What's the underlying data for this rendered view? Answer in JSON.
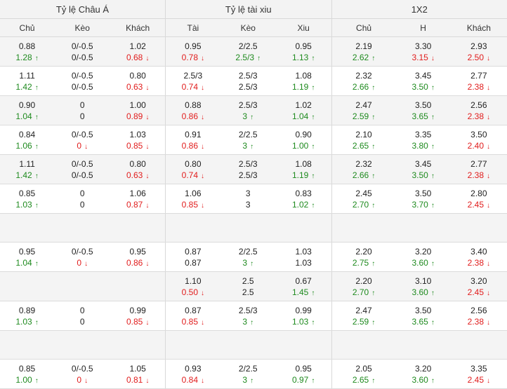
{
  "header": {
    "groups": [
      {
        "label": "Tỷ lệ Châu Á",
        "span": 3
      },
      {
        "label": "Tỷ lệ tài xiu",
        "span": 3
      },
      {
        "label": "1X2",
        "span": 3
      }
    ],
    "columns": [
      "Chủ",
      "Kèo",
      "Khách",
      "Tài",
      "Kèo",
      "Xiu",
      "Chủ",
      "H",
      "Khách"
    ]
  },
  "arrows": {
    "up": "↑",
    "down": "↓"
  },
  "colors": {
    "up": "#1e8a1e",
    "down": "#e11c1c",
    "header_bg": "#f3f3f3",
    "stripe_bg": "#f4f4f4"
  },
  "rows": [
    {
      "top": [
        "0.88",
        "0/-0.5",
        "1.02",
        "0.95",
        "2/2.5",
        "0.95",
        "2.19",
        "3.30",
        "2.93"
      ],
      "bot": [
        [
          "1.28",
          "up"
        ],
        [
          "0/-0.5",
          ""
        ],
        [
          "0.68",
          "down"
        ],
        [
          "0.78",
          "down"
        ],
        [
          "2.5/3",
          "up"
        ],
        [
          "1.13",
          "up"
        ],
        [
          "2.62",
          "up"
        ],
        [
          "3.15",
          "down"
        ],
        [
          "2.50",
          "down"
        ]
      ]
    },
    {
      "top": [
        "1.11",
        "0/-0.5",
        "0.80",
        "2.5/3",
        "2.5/3",
        "1.08",
        "2.32",
        "3.45",
        "2.77"
      ],
      "bot": [
        [
          "1.42",
          "up"
        ],
        [
          "0/-0.5",
          ""
        ],
        [
          "0.63",
          "down"
        ],
        [
          "0.74",
          "down"
        ],
        [
          "2.5/3",
          ""
        ],
        [
          "1.19",
          "up"
        ],
        [
          "2.66",
          "up"
        ],
        [
          "3.50",
          "up"
        ],
        [
          "2.38",
          "down"
        ]
      ]
    },
    {
      "top": [
        "0.90",
        "0",
        "1.00",
        "0.88",
        "2.5/3",
        "1.02",
        "2.47",
        "3.50",
        "2.56"
      ],
      "bot": [
        [
          "1.04",
          "up"
        ],
        [
          "0",
          ""
        ],
        [
          "0.89",
          "down"
        ],
        [
          "0.86",
          "down"
        ],
        [
          "3",
          "up"
        ],
        [
          "1.04",
          "up"
        ],
        [
          "2.59",
          "up"
        ],
        [
          "3.65",
          "up"
        ],
        [
          "2.38",
          "down"
        ]
      ]
    },
    {
      "top": [
        "0.84",
        "0/-0.5",
        "1.03",
        "0.91",
        "2/2.5",
        "0.90",
        "2.10",
        "3.35",
        "3.50"
      ],
      "bot": [
        [
          "1.06",
          "up"
        ],
        [
          "0",
          "down"
        ],
        [
          "0.85",
          "down"
        ],
        [
          "0.86",
          "down"
        ],
        [
          "3",
          "up"
        ],
        [
          "1.00",
          "up"
        ],
        [
          "2.65",
          "up"
        ],
        [
          "3.80",
          "up"
        ],
        [
          "2.40",
          "down"
        ]
      ]
    },
    {
      "top": [
        "1.11",
        "0/-0.5",
        "0.80",
        "0.80",
        "2.5/3",
        "1.08",
        "2.32",
        "3.45",
        "2.77"
      ],
      "bot": [
        [
          "1.42",
          "up"
        ],
        [
          "0/-0.5",
          ""
        ],
        [
          "0.63",
          "down"
        ],
        [
          "0.74",
          "down"
        ],
        [
          "2.5/3",
          ""
        ],
        [
          "1.19",
          "up"
        ],
        [
          "2.66",
          "up"
        ],
        [
          "3.50",
          "up"
        ],
        [
          "2.38",
          "down"
        ]
      ]
    },
    {
      "top": [
        "0.85",
        "0",
        "1.06",
        "1.06",
        "3",
        "0.83",
        "2.45",
        "3.50",
        "2.80"
      ],
      "bot": [
        [
          "1.03",
          "up"
        ],
        [
          "0",
          ""
        ],
        [
          "0.87",
          "down"
        ],
        [
          "0.85",
          "down"
        ],
        [
          "3",
          ""
        ],
        [
          "1.02",
          "up"
        ],
        [
          "2.70",
          "up"
        ],
        [
          "3.70",
          "up"
        ],
        [
          "2.45",
          "down"
        ]
      ]
    },
    {
      "blank": true
    },
    {
      "top": [
        "0.95",
        "0/-0.5",
        "0.95",
        "0.87",
        "2/2.5",
        "1.03",
        "2.20",
        "3.20",
        "3.40"
      ],
      "bot": [
        [
          "1.04",
          "up"
        ],
        [
          "0",
          "down"
        ],
        [
          "0.86",
          "down"
        ],
        [
          "0.87",
          ""
        ],
        [
          "3",
          "up"
        ],
        [
          "1.03",
          ""
        ],
        [
          "2.75",
          "up"
        ],
        [
          "3.60",
          "up"
        ],
        [
          "2.38",
          "down"
        ]
      ]
    },
    {
      "top": [
        "",
        "",
        "",
        "1.10",
        "2.5",
        "0.67",
        "2.20",
        "3.10",
        "3.20"
      ],
      "bot": [
        [
          "",
          ""
        ],
        [
          "",
          ""
        ],
        [
          "",
          ""
        ],
        [
          "0.50",
          "down"
        ],
        [
          "2.5",
          ""
        ],
        [
          "1.45",
          "up"
        ],
        [
          "2.70",
          "up"
        ],
        [
          "3.60",
          "up"
        ],
        [
          "2.45",
          "down"
        ]
      ]
    },
    {
      "top": [
        "0.89",
        "0",
        "0.99",
        "0.87",
        "2.5/3",
        "0.99",
        "2.47",
        "3.50",
        "2.56"
      ],
      "bot": [
        [
          "1.03",
          "up"
        ],
        [
          "0",
          ""
        ],
        [
          "0.85",
          "down"
        ],
        [
          "0.85",
          "down"
        ],
        [
          "3",
          "up"
        ],
        [
          "1.03",
          "up"
        ],
        [
          "2.59",
          "up"
        ],
        [
          "3.65",
          "up"
        ],
        [
          "2.38",
          "down"
        ]
      ]
    },
    {
      "blank": true
    },
    {
      "top": [
        "0.85",
        "0/-0.5",
        "1.05",
        "0.93",
        "2/2.5",
        "0.95",
        "2.05",
        "3.20",
        "3.35"
      ],
      "bot": [
        [
          "1.00",
          "up"
        ],
        [
          "0",
          "down"
        ],
        [
          "0.81",
          "down"
        ],
        [
          "0.84",
          "down"
        ],
        [
          "3",
          "up"
        ],
        [
          "0.97",
          "up"
        ],
        [
          "2.65",
          "up"
        ],
        [
          "3.60",
          "up"
        ],
        [
          "2.45",
          "down"
        ]
      ]
    }
  ]
}
